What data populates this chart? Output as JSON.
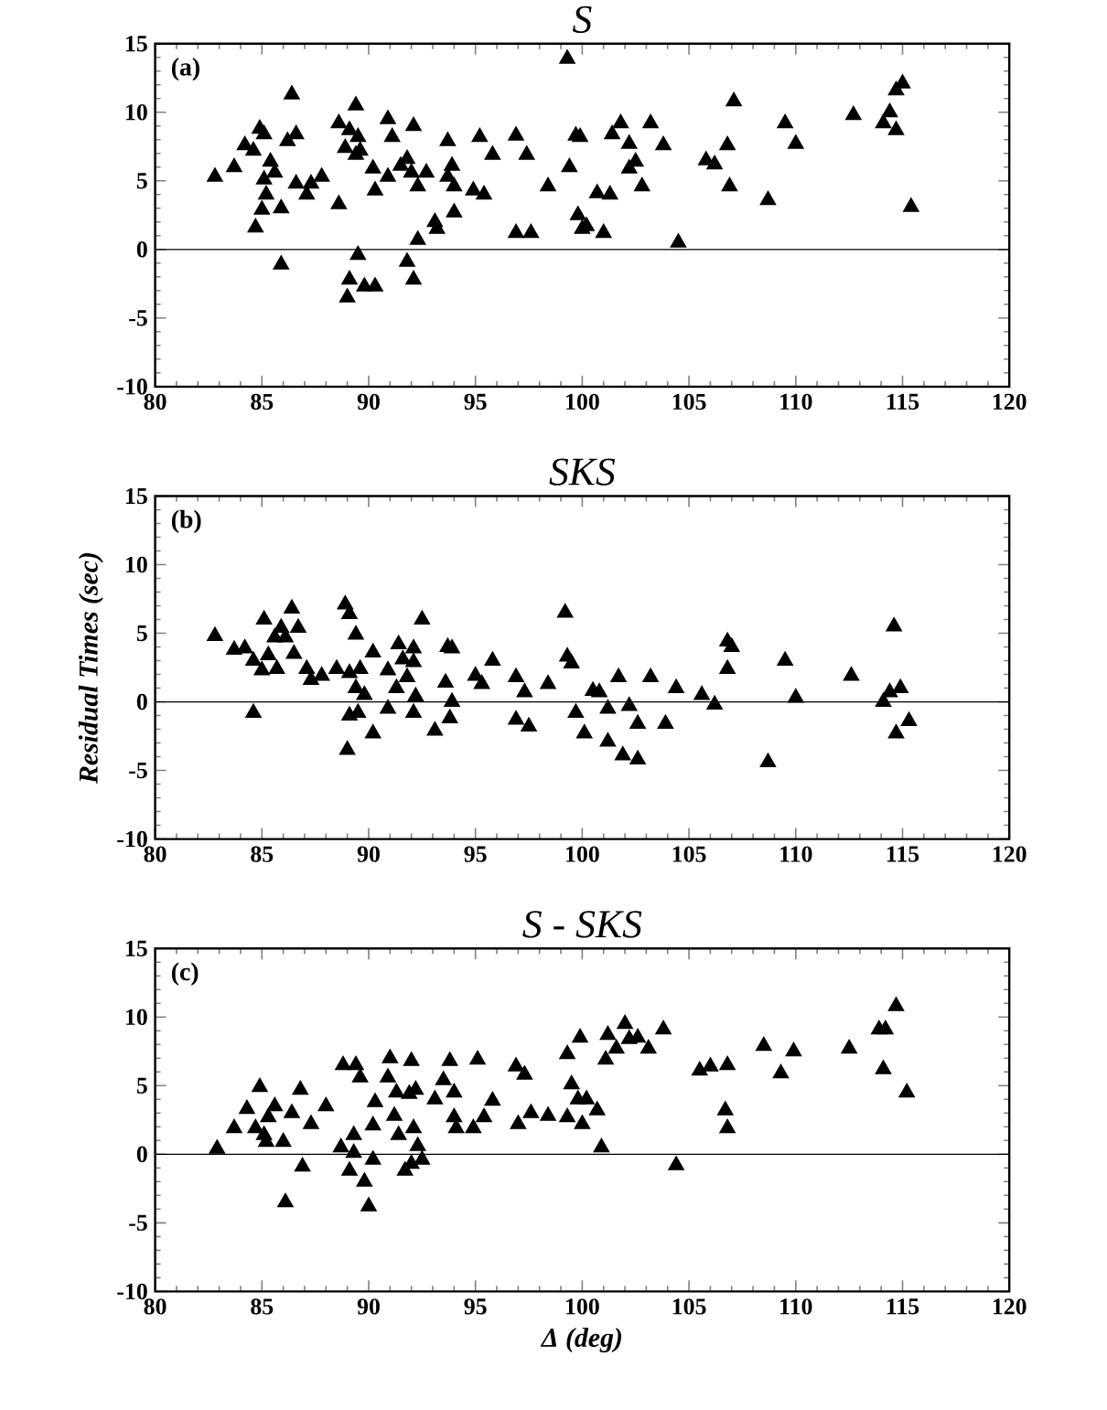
{
  "chart_data": [
    {
      "type": "scatter",
      "title": "S",
      "annotations": [
        "(a)"
      ],
      "marker": "triangle",
      "xlim": [
        80,
        120
      ],
      "ylim": [
        -10,
        15
      ],
      "xticks": [
        80,
        85,
        90,
        95,
        100,
        105,
        110,
        115,
        120
      ],
      "yticks": [
        -10,
        -5,
        0,
        5,
        10,
        15
      ],
      "ref_lines": [
        {
          "axis": "y",
          "value": 0,
          "color": "#000000"
        }
      ],
      "series": [
        {
          "color": "#000000",
          "x": [
            82.8,
            83.7,
            84.2,
            84.9,
            85.1,
            84.6,
            85.4,
            85.1,
            85.2,
            85.0,
            84.7,
            85.9,
            86.2,
            86.6,
            86.4,
            85.6,
            85.9,
            86.6,
            87.1,
            87.3,
            87.8,
            88.6,
            88.6,
            89.4,
            89.1,
            89.5,
            88.9,
            89.6,
            89.4,
            90.2,
            90.3,
            90.9,
            91.1,
            90.9,
            91.5,
            91.8,
            92.1,
            92.0,
            92.3,
            92.7,
            92.3,
            91.8,
            92.1,
            89.5,
            89.1,
            89.0,
            89.8,
            90.3,
            93.1,
            93.2,
            93.7,
            93.9,
            93.7,
            94.0,
            94.0,
            94.9,
            95.4,
            95.2,
            95.8,
            96.9,
            97.4,
            96.9,
            97.6,
            98.4,
            99.3,
            99.4,
            99.7,
            99.9,
            99.8,
            100.2,
            100.0,
            101.0,
            100.7,
            101.3,
            101.4,
            101.8,
            102.2,
            102.2,
            102.5,
            102.8,
            103.2,
            103.8,
            104.5,
            105.8,
            106.2,
            106.8,
            107.1,
            106.9,
            108.7,
            109.5,
            110.0,
            112.7,
            114.1,
            114.4,
            114.7,
            114.7,
            115.0,
            115.4
          ],
          "values": [
            5.3,
            6.0,
            7.6,
            8.8,
            8.4,
            7.2,
            6.4,
            5.1,
            4.0,
            2.9,
            1.6,
            3.0,
            7.9,
            8.4,
            11.3,
            5.6,
            -1.1,
            4.8,
            4.0,
            4.8,
            5.3,
            3.3,
            9.2,
            10.5,
            8.7,
            8.2,
            7.4,
            7.2,
            6.9,
            5.9,
            4.3,
            9.5,
            8.2,
            5.3,
            6.1,
            6.6,
            9.0,
            5.6,
            4.6,
            5.6,
            0.7,
            -0.9,
            -2.2,
            -0.4,
            -2.2,
            -3.5,
            -2.7,
            -2.7,
            2.0,
            1.5,
            7.9,
            6.1,
            5.3,
            4.6,
            2.7,
            4.3,
            4.0,
            8.2,
            6.9,
            8.3,
            6.9,
            1.2,
            1.2,
            4.6,
            13.9,
            6.0,
            8.3,
            8.2,
            2.5,
            1.7,
            1.5,
            1.2,
            4.1,
            4.0,
            8.4,
            9.2,
            7.7,
            5.9,
            6.4,
            4.6,
            9.2,
            7.6,
            0.5,
            6.5,
            6.2,
            7.6,
            10.8,
            4.6,
            3.6,
            9.2,
            7.7,
            9.8,
            9.2,
            10.0,
            8.7,
            11.6,
            12.1,
            3.1
          ]
        }
      ]
    },
    {
      "type": "scatter",
      "title": "SKS",
      "ylabel": "Residual Times (sec)",
      "annotations": [
        "(b)"
      ],
      "marker": "triangle",
      "xlim": [
        80,
        120
      ],
      "ylim": [
        -10,
        15
      ],
      "xticks": [
        80,
        85,
        90,
        95,
        100,
        105,
        110,
        115,
        120
      ],
      "yticks": [
        -10,
        -5,
        0,
        5,
        10,
        15
      ],
      "ref_lines": [
        {
          "axis": "y",
          "value": 0,
          "color": "#000000"
        }
      ],
      "series": [
        {
          "color": "#000000",
          "x": [
            82.8,
            83.7,
            84.2,
            85.1,
            84.6,
            85.0,
            85.3,
            85.6,
            85.9,
            85.7,
            86.1,
            86.4,
            86.7,
            86.5,
            84.6,
            87.1,
            87.3,
            87.8,
            88.5,
            88.9,
            89.1,
            89.4,
            89.1,
            89.6,
            89.4,
            89.8,
            89.1,
            89.5,
            89.0,
            90.2,
            90.2,
            90.9,
            90.9,
            91.4,
            91.6,
            91.3,
            91.8,
            92.1,
            92.1,
            92.1,
            92.2,
            92.5,
            93.1,
            93.7,
            93.9,
            93.6,
            93.9,
            93.8,
            95.0,
            95.3,
            95.8,
            96.9,
            97.3,
            96.9,
            97.5,
            98.4,
            99.2,
            99.3,
            99.5,
            99.7,
            100.1,
            100.5,
            100.8,
            101.2,
            101.7,
            101.2,
            101.9,
            102.6,
            102.2,
            102.6,
            103.2,
            103.9,
            104.4,
            105.6,
            106.2,
            106.8,
            107.0,
            106.8,
            108.7,
            109.5,
            110.0,
            112.6,
            114.6,
            114.1,
            114.4,
            114.9,
            114.7,
            115.3
          ],
          "values": [
            4.8,
            3.8,
            3.9,
            6.0,
            3.0,
            2.3,
            3.4,
            4.7,
            5.4,
            2.4,
            4.7,
            6.8,
            5.4,
            3.5,
            -0.8,
            2.4,
            1.6,
            1.9,
            2.4,
            7.1,
            6.4,
            4.9,
            2.1,
            2.4,
            1.0,
            0.5,
            -1.0,
            -0.8,
            -3.5,
            -2.3,
            3.6,
            -0.5,
            2.3,
            4.2,
            3.1,
            1.0,
            1.8,
            3.9,
            2.9,
            -0.8,
            0.4,
            6.0,
            -2.1,
            4.0,
            3.9,
            1.4,
            0.0,
            -1.2,
            1.9,
            1.3,
            3.0,
            1.8,
            0.7,
            -1.3,
            -1.8,
            1.3,
            6.5,
            3.3,
            2.8,
            -0.8,
            -2.3,
            0.8,
            0.7,
            -0.5,
            1.8,
            -2.9,
            -3.9,
            -4.2,
            -0.3,
            -1.6,
            1.8,
            -1.6,
            1.0,
            0.5,
            -0.2,
            4.4,
            4.0,
            2.4,
            -4.4,
            3.0,
            0.3,
            1.9,
            5.5,
            0.0,
            0.7,
            1.0,
            -2.3,
            -1.4
          ]
        }
      ]
    },
    {
      "type": "scatter",
      "title": "S - SKS",
      "xlabel": "Δ  (deg)",
      "annotations": [
        "(c)"
      ],
      "marker": "triangle",
      "xlim": [
        80,
        120
      ],
      "ylim": [
        -10,
        15
      ],
      "xticks": [
        80,
        85,
        90,
        95,
        100,
        105,
        110,
        115,
        120
      ],
      "yticks": [
        -10,
        -5,
        0,
        5,
        10,
        15
      ],
      "ref_lines": [
        {
          "axis": "y",
          "value": 0,
          "color": "#000000"
        }
      ],
      "series": [
        {
          "color": "#000000",
          "x": [
            82.9,
            83.7,
            84.3,
            84.9,
            84.7,
            85.1,
            85.3,
            85.2,
            85.6,
            86.0,
            86.1,
            86.4,
            86.8,
            86.9,
            87.3,
            88.0,
            88.8,
            89.4,
            89.6,
            88.7,
            89.3,
            89.3,
            89.1,
            89.8,
            90.0,
            90.2,
            90.3,
            90.2,
            91.0,
            90.9,
            91.3,
            91.2,
            91.4,
            92.0,
            91.9,
            92.2,
            92.1,
            91.7,
            92.0,
            92.5,
            92.3,
            93.1,
            93.5,
            93.8,
            94.0,
            94.0,
            94.1,
            95.1,
            94.9,
            95.4,
            95.8,
            96.9,
            97.3,
            97.0,
            97.6,
            98.4,
            99.3,
            99.9,
            99.5,
            99.8,
            99.3,
            100.2,
            100.0,
            100.7,
            100.9,
            101.2,
            101.1,
            101.6,
            102.0,
            102.2,
            102.6,
            103.1,
            103.8,
            104.4,
            105.5,
            106.0,
            106.8,
            106.7,
            106.8,
            108.5,
            109.3,
            109.9,
            112.5,
            113.9,
            114.2,
            114.1,
            114.7,
            115.2
          ],
          "values": [
            0.4,
            1.9,
            3.3,
            4.9,
            1.9,
            1.4,
            2.7,
            0.9,
            3.5,
            0.9,
            -3.5,
            3.0,
            4.7,
            -0.9,
            2.2,
            3.5,
            6.5,
            6.5,
            5.6,
            0.5,
            1.4,
            0.1,
            -1.2,
            -2.0,
            -3.8,
            -0.4,
            3.8,
            2.1,
            7.0,
            5.6,
            4.5,
            2.8,
            1.4,
            6.8,
            4.4,
            4.7,
            1.9,
            -1.2,
            -0.7,
            -0.4,
            0.6,
            4.0,
            5.4,
            6.8,
            4.5,
            2.7,
            1.9,
            6.9,
            1.9,
            2.7,
            3.9,
            6.4,
            5.8,
            2.2,
            3.0,
            2.8,
            7.3,
            8.5,
            5.1,
            4.0,
            2.7,
            4.0,
            2.2,
            3.2,
            0.5,
            8.7,
            6.9,
            7.7,
            9.5,
            8.4,
            8.5,
            7.7,
            9.1,
            -0.8,
            6.1,
            6.4,
            6.5,
            3.2,
            1.9,
            7.9,
            5.9,
            7.5,
            7.7,
            9.1,
            9.1,
            6.2,
            10.8,
            4.5
          ]
        }
      ]
    }
  ]
}
